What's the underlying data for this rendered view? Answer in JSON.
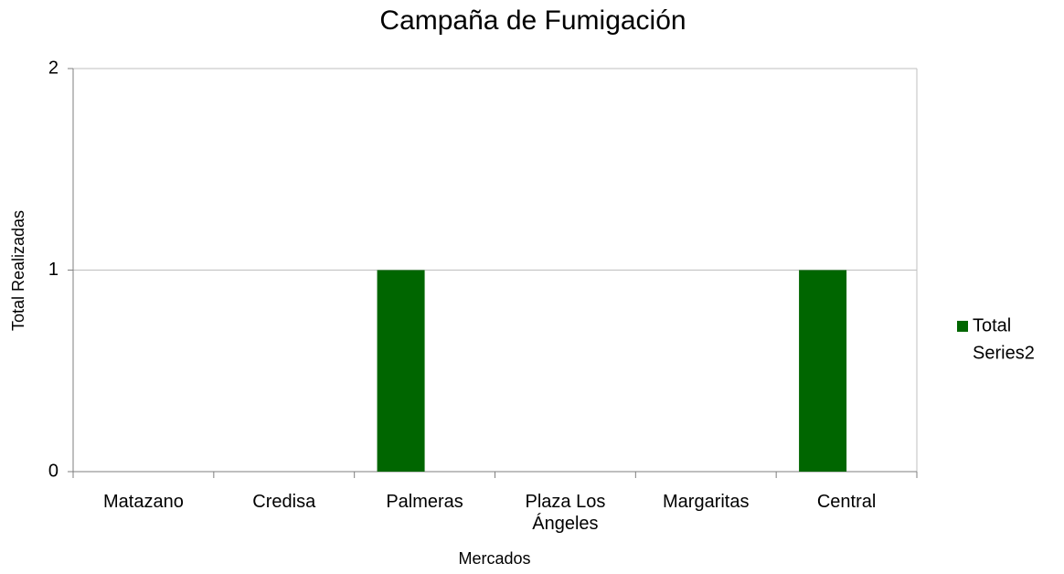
{
  "chart_data": {
    "type": "bar",
    "title": "Campaña de Fumigación",
    "xlabel": "Mercados",
    "ylabel": "Total Realizadas",
    "categories": [
      "Matazano",
      "Credisa",
      "Palmeras",
      "Plaza Los Ángeles",
      "Margaritas",
      "Central"
    ],
    "series": [
      {
        "name": "Total",
        "color": "#006600",
        "values": [
          0,
          0,
          1,
          0,
          0,
          1
        ]
      },
      {
        "name": "Series2",
        "color": "none",
        "values": [
          0,
          0,
          0,
          0,
          0,
          0
        ]
      }
    ],
    "ylim": [
      0,
      2
    ],
    "yticks": [
      0,
      1,
      2
    ],
    "grid": true,
    "legend": "right"
  }
}
